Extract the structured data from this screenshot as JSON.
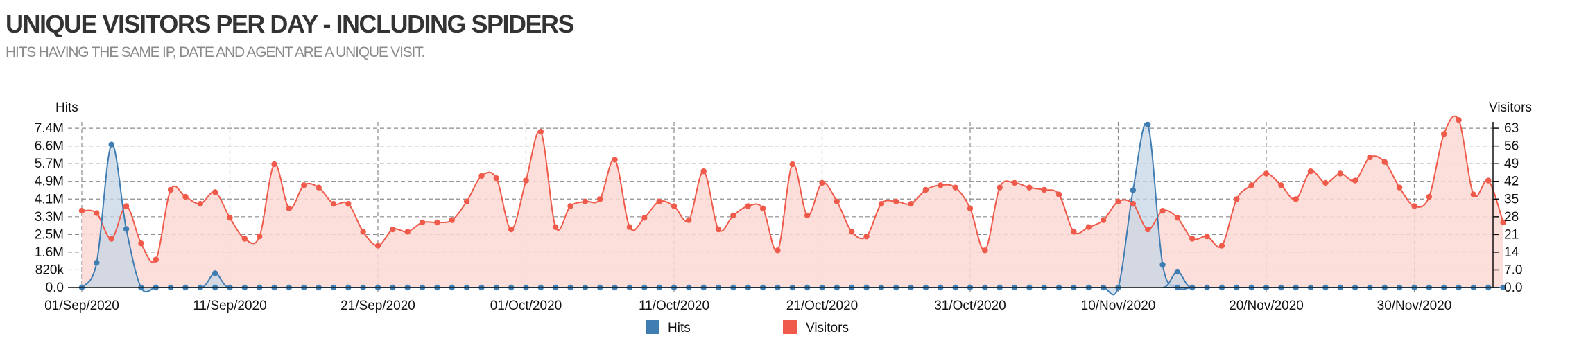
{
  "header": {
    "title": "UNIQUE VISITORS PER DAY - INCLUDING SPIDERS",
    "subtitle": "HITS HAVING THE SAME IP, DATE AND AGENT ARE A UNIQUE VISIT."
  },
  "colors": {
    "hits": "#3f7db3",
    "visitors": "#ef5a4a",
    "visitors_fill": "#fbd9d4",
    "hits_fill": "#c6d6e6",
    "grid": "#8c8c8c"
  },
  "chart_data": {
    "type": "line",
    "left_axis_label": "Hits",
    "right_axis_label": "Visitors",
    "left_ticks": [
      "0.0",
      "820k",
      "1.6M",
      "2.5M",
      "3.3M",
      "4.1M",
      "4.9M",
      "5.7M",
      "6.6M",
      "7.4M"
    ],
    "right_ticks": [
      "0.0",
      "7.0",
      "14",
      "21",
      "28",
      "35",
      "42",
      "49",
      "56",
      "63"
    ],
    "left_ylim": [
      0,
      8200000
    ],
    "right_ylim": [
      0,
      70
    ],
    "x_tick_labels": [
      "01/Sep/2020",
      "11/Sep/2020",
      "21/Sep/2020",
      "01/Oct/2020",
      "11/Oct/2020",
      "21/Oct/2020",
      "31/Oct/2020",
      "10/Nov/2020",
      "20/Nov/2020",
      "30/Nov/2020"
    ],
    "x_tick_days": [
      0,
      10,
      20,
      30,
      40,
      50,
      60,
      70,
      80,
      90
    ],
    "grid": true,
    "legend": [
      "Hits",
      "Visitors"
    ],
    "legend_position": "bottom-center",
    "series": [
      {
        "name": "Visitors",
        "axis": "right",
        "values": [
          33,
          32,
          21,
          35,
          19,
          12,
          42,
          39,
          36,
          41,
          30,
          21,
          22,
          53,
          34,
          44,
          43,
          36,
          36,
          24,
          18,
          25,
          24,
          28,
          28,
          29,
          37,
          48,
          47,
          25,
          46,
          67,
          26,
          35,
          37,
          38,
          55,
          26,
          30,
          37,
          35,
          29,
          50,
          25,
          31,
          35,
          34,
          16,
          53,
          31,
          45,
          37,
          24,
          22,
          36,
          37,
          36,
          42,
          44,
          43,
          34,
          16,
          43,
          45,
          43,
          42,
          40,
          24,
          26,
          29,
          37,
          36,
          25,
          33,
          30,
          21,
          22,
          18,
          38,
          44,
          49,
          44,
          38,
          50,
          45,
          49,
          46,
          56,
          54,
          43,
          35,
          39,
          66,
          72,
          40,
          46,
          28
        ]
      },
      {
        "name": "Hits",
        "axis": "left",
        "values": [
          0,
          1250000,
          7200000,
          2950000,
          0,
          0,
          0,
          0,
          0,
          0,
          0,
          0,
          0,
          0,
          0,
          0,
          0,
          0,
          0,
          0,
          0,
          0,
          0,
          0,
          0,
          0,
          0,
          0,
          0,
          0,
          0,
          0,
          0,
          0,
          0,
          0,
          0,
          0,
          0,
          0,
          0,
          0,
          0,
          0,
          0,
          0,
          0,
          0,
          0,
          0,
          0,
          0,
          0,
          0,
          0,
          0,
          0,
          0,
          0,
          0,
          0,
          0,
          0,
          0,
          0,
          0,
          0,
          0,
          0,
          0,
          0,
          4900000,
          8200000,
          1150000,
          0,
          0,
          0,
          0,
          0,
          0,
          0,
          0,
          0,
          0,
          0,
          0,
          0,
          0,
          0,
          0,
          0,
          0,
          0,
          0,
          0,
          0,
          0
        ],
        "extra_points": [
          [
            9,
            720000
          ],
          [
            74,
            800000
          ]
        ]
      }
    ]
  }
}
